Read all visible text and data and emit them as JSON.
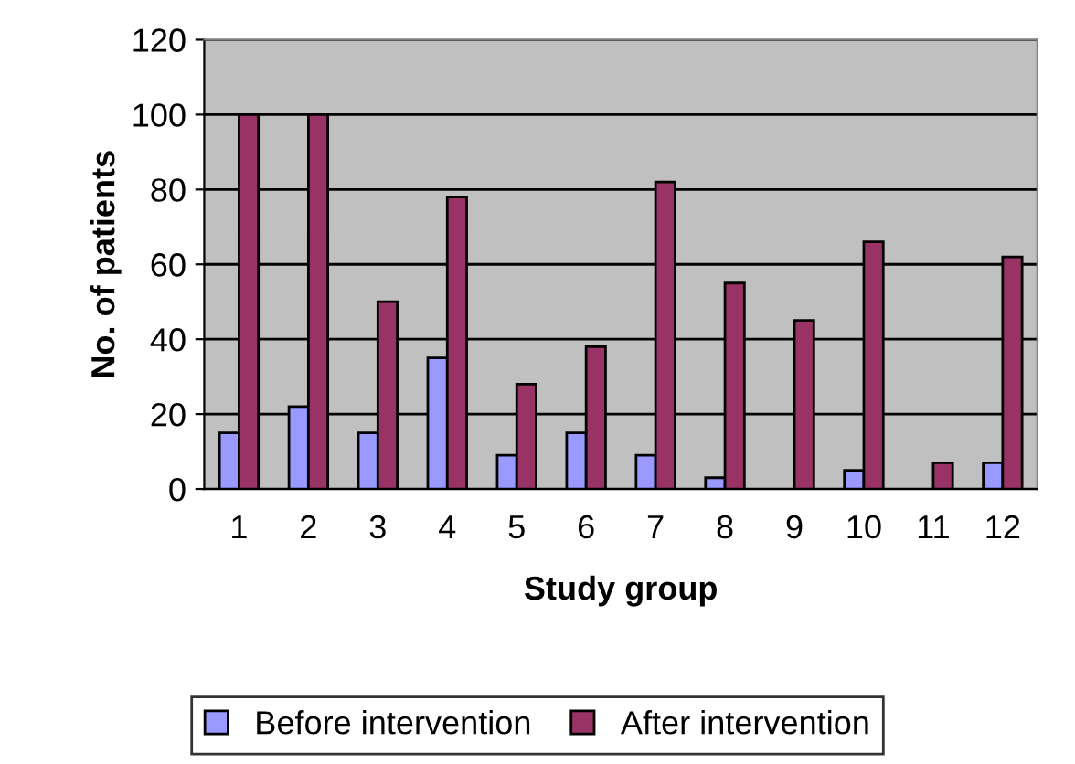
{
  "chart_data": {
    "type": "bar",
    "xlabel": "Study group",
    "ylabel": "No. of patients",
    "categories": [
      "1",
      "2",
      "3",
      "4",
      "5",
      "6",
      "7",
      "8",
      "9",
      "10",
      "11",
      "12"
    ],
    "series": [
      {
        "name": "Before intervention",
        "color": "#9999ff",
        "values": [
          15,
          22,
          15,
          35,
          9,
          15,
          9,
          3,
          null,
          5,
          null,
          7
        ]
      },
      {
        "name": "After intervention",
        "color": "#993366",
        "values": [
          100,
          100,
          50,
          78,
          28,
          38,
          82,
          55,
          45,
          66,
          7,
          62
        ]
      }
    ],
    "ylim": [
      0,
      120
    ],
    "yticks": [
      0,
      20,
      40,
      60,
      80,
      100,
      120
    ],
    "grid": "y",
    "legend": "bottom"
  }
}
